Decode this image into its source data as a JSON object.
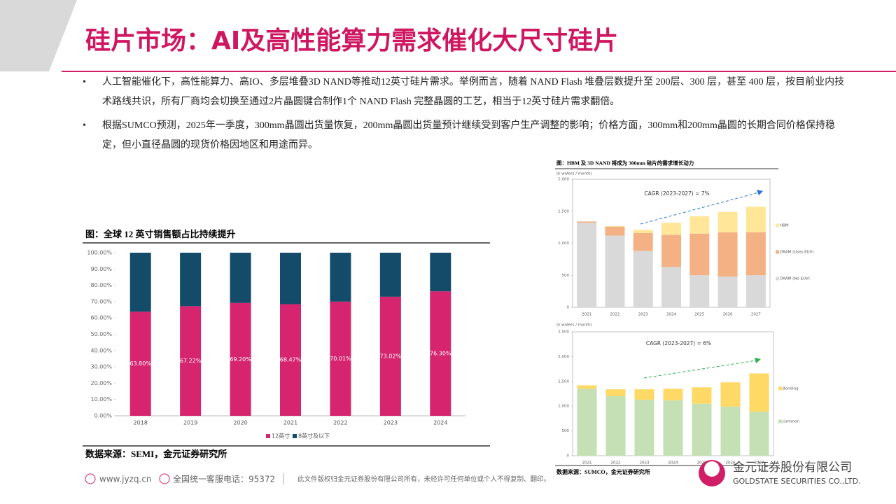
{
  "header": {
    "title": "硅片市场：AI及高性能算力需求催化大尺寸硅片"
  },
  "bullets": [
    "人工智能催化下，高性能算力、高IO、多层堆叠3D NAND等推动12英寸硅片需求。举例而言，随着 NAND Flash 堆叠层数提升至 200层、300 层，甚至 400 层，按目前业内技术路线共识，所有厂商均会切换至通过2片晶圆键合制作1个 NAND Flash 完整晶圆的工艺，相当于12英寸硅片需求翻倍。",
    "根据SUMCO预测，2025年一季度，300mm晶圆出货量恢复，200mm晶圆出货量预计继续受到客户生产调整的影响；价格方面，300mm和200mm晶圆的长期合同价格保持稳定，但小直径晶圆的现货价格因地区和用途而异。"
  ],
  "charts": [
    {
      "type": "bar",
      "stacked": true,
      "title": "图：全球 12 英寸销售额占比持续提升",
      "source": "数据来源：SEMI，金元证券研究所",
      "legend": "bottom",
      "categories": [
        "2018",
        "2019",
        "2020",
        "2021",
        "2022",
        "2023",
        "2024"
      ],
      "series": [
        {
          "name": "12英寸",
          "color": "#d6246e",
          "values": [
            63.8,
            67.22,
            69.2,
            68.47,
            70.01,
            73.02,
            76.3
          ],
          "value_labels": [
            "63.80%",
            "67.22%",
            "69.20%",
            "68.47%",
            "70.01%",
            "73.02%",
            "76.30%"
          ]
        },
        {
          "name": "8英寸及以下",
          "color": "#134b69",
          "values": [
            36.2,
            32.78,
            30.8,
            31.53,
            29.99,
            26.98,
            23.7
          ]
        }
      ],
      "ylim": [
        0,
        100
      ],
      "yticks": [
        {
          "value": 0,
          "label": "0.00%"
        },
        {
          "value": 10,
          "label": "10.00%"
        },
        {
          "value": 20,
          "label": "20.00%"
        },
        {
          "value": 30,
          "label": "30.00%"
        },
        {
          "value": 40,
          "label": "40.00%"
        },
        {
          "value": 50,
          "label": "50.00%"
        },
        {
          "value": 60,
          "label": "60.00%"
        },
        {
          "value": 70,
          "label": "70.00%"
        },
        {
          "value": 80,
          "label": "80.00%"
        },
        {
          "value": 90,
          "label": "90.00%"
        },
        {
          "value": 100,
          "label": "100.00%"
        }
      ]
    },
    {
      "type": "bar",
      "stacked": true,
      "title": "图：HBM 及 3D NAND 将成为 300mm 硅片的需求增长动力",
      "y_label": "(k wafers / month)",
      "annotation": "CAGR (2023-2027) = 7%",
      "legend": "right",
      "categories": [
        "2021",
        "2022",
        "2023",
        "2024",
        "2025",
        "2026",
        "2027"
      ],
      "series": [
        {
          "name": "DRAM (No EUV)",
          "color": "#d9d9d9",
          "values": [
            1320,
            1120,
            880,
            630,
            500,
            480,
            500
          ]
        },
        {
          "name": "DRAM (Uses EUV)",
          "color": "#f4b183",
          "values": [
            20,
            140,
            280,
            500,
            650,
            690,
            670
          ]
        },
        {
          "name": "HBM",
          "color": "#ffe699",
          "values": [
            0,
            10,
            50,
            190,
            270,
            320,
            400
          ]
        }
      ],
      "ylim": [
        0,
        2000
      ],
      "yticks": [
        0,
        500,
        {
          "value": 1000,
          "label": "1,000"
        },
        {
          "value": 1500,
          "label": "1,500"
        },
        {
          "value": 2000,
          "label": "2,000"
        }
      ]
    },
    {
      "type": "bar",
      "stacked": true,
      "y_label": "(k wafers / month)",
      "annotation": "CAGR (2023-2027) = 6%",
      "source": "数据来源：SUMCO，金元证券研究所",
      "legend": "right",
      "categories": [
        "2021",
        "2022",
        "2023",
        "2024",
        "2025",
        "2026",
        "2027"
      ],
      "series": [
        {
          "name": "common",
          "color": "#c5e0b4",
          "values": [
            1350,
            1200,
            1130,
            1120,
            1050,
            990,
            890
          ]
        },
        {
          "name": "Bonding",
          "color": "#ffd966",
          "values": [
            70,
            140,
            210,
            230,
            330,
            490,
            770
          ]
        }
      ],
      "ylim": [
        0,
        2500
      ],
      "yticks": [
        0,
        500,
        {
          "value": 1000,
          "label": "1,000"
        },
        {
          "value": 1500,
          "label": "1,500"
        },
        {
          "value": 2000,
          "label": "2,000"
        },
        {
          "value": 2500,
          "label": "2,500"
        }
      ]
    }
  ],
  "footer": {
    "site": "www.jyzq.cn",
    "hotline": "全国统一客服电话：95372",
    "copyright": "此文件版权归金元证券股份有限公司所有，未经许可任何单位或个人不得复制、翻印。",
    "company": "金元证券股份有限公司",
    "company_en": "GOLDSTATE SECURITIES CO.,LTD."
  }
}
